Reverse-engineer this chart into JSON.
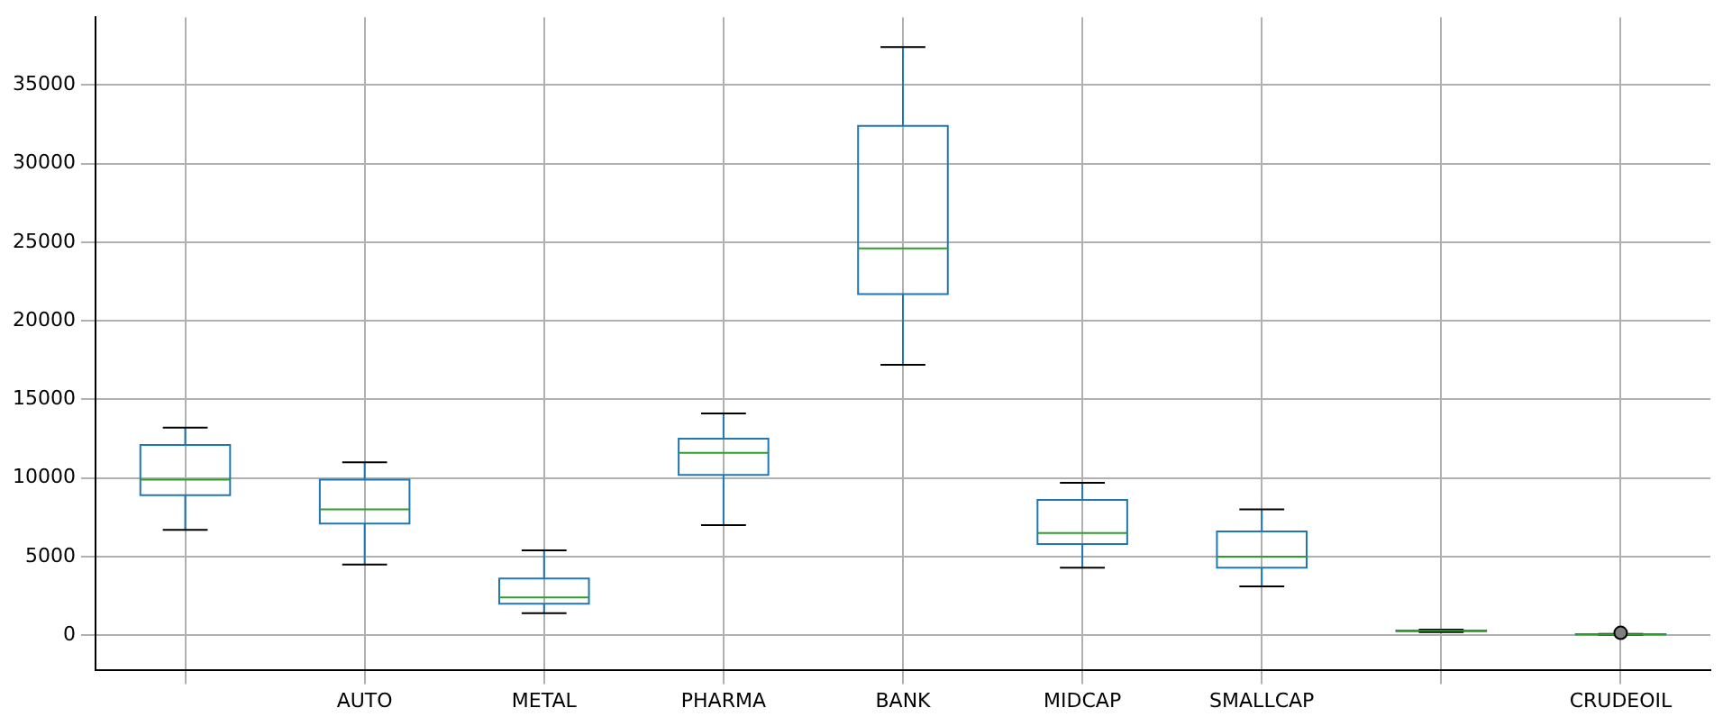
{
  "chart_data": {
    "type": "box",
    "categories": [
      null,
      "AUTO",
      "METAL",
      "PHARMA",
      "BANK",
      "MIDCAP",
      "SMALLCAP",
      null,
      "CRUDEOIL"
    ],
    "ylim": [
      -2200,
      39300
    ],
    "yticks": [
      0,
      5000,
      10000,
      15000,
      20000,
      25000,
      30000,
      35000
    ],
    "grid": true,
    "series": [
      {
        "color": "#1f77b4",
        "boxes": [
          {
            "low": 6700,
            "q1": 8900,
            "median": 9900,
            "q3": 12100,
            "high": 13200
          },
          {
            "low": 4500,
            "q1": 7100,
            "median": 8000,
            "q3": 9900,
            "high": 11000
          },
          {
            "low": 1400,
            "q1": 2000,
            "median": 2400,
            "q3": 3600,
            "high": 5400
          },
          {
            "low": 7000,
            "q1": 10200,
            "median": 11600,
            "q3": 12500,
            "high": 14100
          },
          {
            "low": 17200,
            "q1": 21700,
            "median": 24600,
            "q3": 32400,
            "high": 37400
          },
          {
            "low": 4300,
            "q1": 5800,
            "median": 6500,
            "q3": 8600,
            "high": 9700
          },
          {
            "low": 3100,
            "q1": 4300,
            "median": 5000,
            "q3": 6600,
            "high": 8000
          },
          {
            "low": 200,
            "q1": 250,
            "median": 280,
            "q3": 300,
            "high": 350
          },
          {
            "low": 40,
            "q1": 50,
            "median": 60,
            "q3": 70,
            "high": 80,
            "outliers": [
              150
            ]
          }
        ]
      }
    ]
  }
}
